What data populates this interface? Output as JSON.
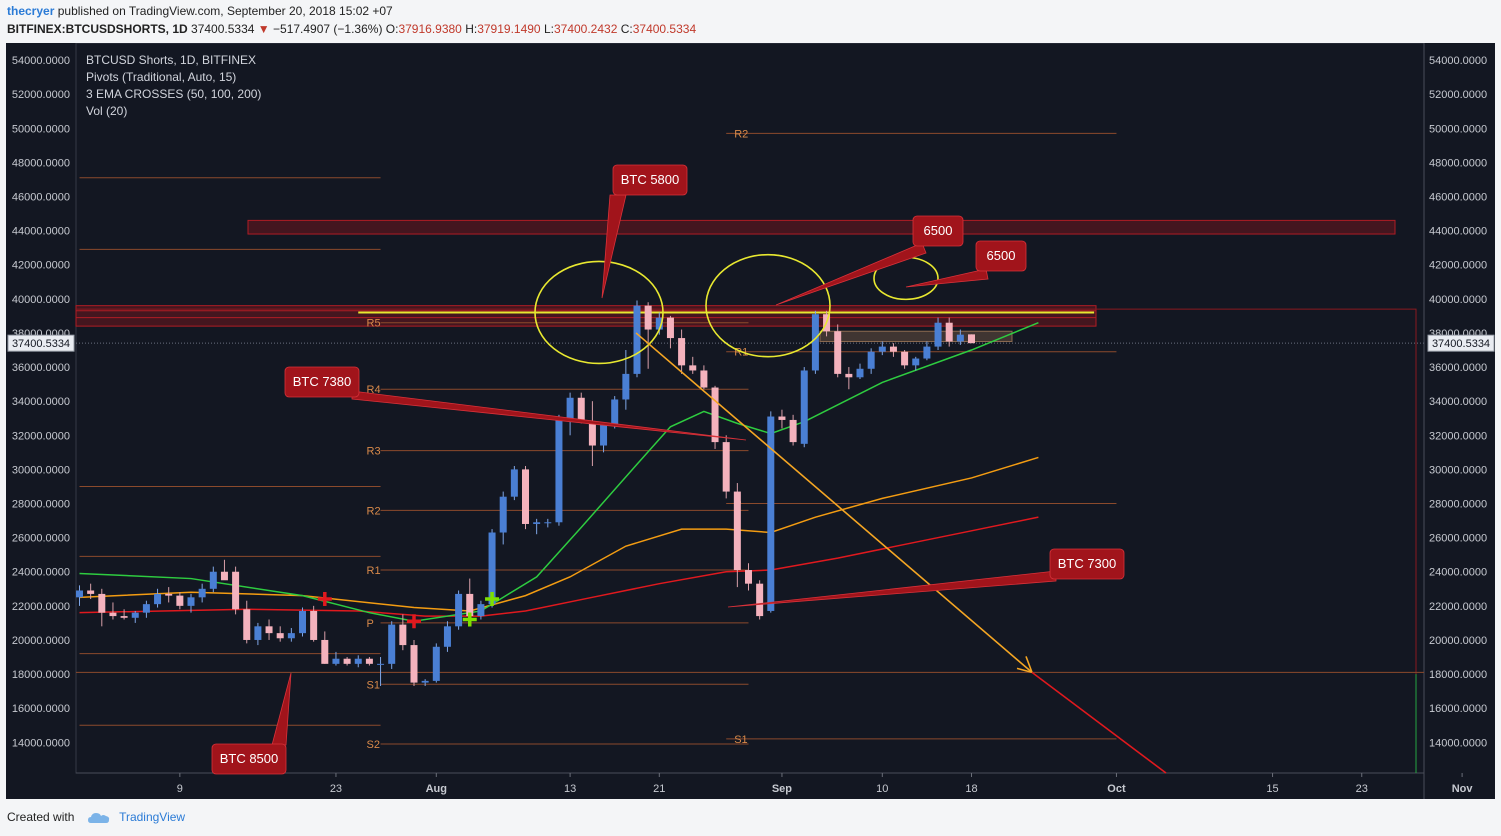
{
  "header": {
    "author": "thecryer",
    "published": "published on TradingView.com, September 20, 2018 15:02 +07"
  },
  "quote": {
    "symbol": "BITFINEX:BTCUSDSHORTS, 1D",
    "last": "37400.5334",
    "change": "−517.4907 (−1.36%)",
    "o_label": "O:",
    "o": "37916.9380",
    "h_label": "H:",
    "h": "37919.1490",
    "l_label": "L:",
    "l": "37400.2432",
    "c_label": "C:",
    "c": "37400.5334"
  },
  "legend": [
    "BTCUSD Shorts, 1D, BITFINEX",
    "Pivots (Traditional, Auto, 15)",
    "3 EMA CROSSES (50, 100, 200)",
    "Vol (20)"
  ],
  "footer": {
    "created": "Created with",
    "brand": "TradingView"
  },
  "colors": {
    "background": "#131722",
    "up": "#4a7fd4",
    "down": "#f4b2bd",
    "ema50": "#2ecc40",
    "ema100": "#f39c12",
    "ema200": "#e0191e",
    "pivot": "#8b4a2c",
    "annotation": "#a1141b",
    "arrow": "#f5a623",
    "yellow": "#e8e830"
  },
  "chart_data": {
    "type": "candlestick",
    "ylim": [
      12200,
      55000
    ],
    "y_ticks": [
      "54000.0000",
      "52000.0000",
      "50000.0000",
      "48000.0000",
      "46000.0000",
      "44000.0000",
      "42000.0000",
      "40000.0000",
      "38000.0000",
      "36000.0000",
      "34000.0000",
      "32000.0000",
      "30000.0000",
      "28000.0000",
      "26000.0000",
      "24000.0000",
      "22000.0000",
      "20000.0000",
      "18000.0000",
      "16000.0000",
      "14000.0000"
    ],
    "x_ticks": [
      {
        "label": "9",
        "day": 9
      },
      {
        "label": "23",
        "day": 23
      },
      {
        "label": "Aug",
        "day": 32
      },
      {
        "label": "13",
        "day": 44
      },
      {
        "label": "21",
        "day": 52
      },
      {
        "label": "Sep",
        "day": 63
      },
      {
        "label": "10",
        "day": 72
      },
      {
        "label": "18",
        "day": 80
      },
      {
        "label": "Oct",
        "day": 93
      },
      {
        "label": "15",
        "day": 107
      },
      {
        "label": "23",
        "day": 115
      },
      {
        "label": "Nov",
        "day": 124
      }
    ],
    "last_price_label": "37400.5334",
    "last_price": 37400.5334,
    "candles": [
      [
        0,
        22500,
        23200,
        22000,
        22900
      ],
      [
        1,
        22900,
        23300,
        22400,
        22700
      ],
      [
        2,
        22700,
        23000,
        20800,
        21600
      ],
      [
        3,
        21600,
        22200,
        21200,
        21400
      ],
      [
        4,
        21400,
        21800,
        21200,
        21300
      ],
      [
        5,
        21300,
        21700,
        21000,
        21600
      ],
      [
        6,
        21600,
        22300,
        21300,
        22100
      ],
      [
        7,
        22100,
        23000,
        21900,
        22700
      ],
      [
        8,
        22700,
        23100,
        22200,
        22600
      ],
      [
        9,
        22600,
        22800,
        21800,
        22000
      ],
      [
        10,
        22000,
        22700,
        21600,
        22500
      ],
      [
        11,
        22500,
        23300,
        22200,
        23000
      ],
      [
        12,
        23000,
        24300,
        22800,
        24000
      ],
      [
        13,
        24000,
        24700,
        23600,
        23500
      ],
      [
        14,
        24000,
        24300,
        21500,
        21800
      ],
      [
        15,
        21800,
        22300,
        19800,
        20000
      ],
      [
        16,
        20000,
        21000,
        19700,
        20800
      ],
      [
        17,
        20800,
        21200,
        20000,
        20400
      ],
      [
        18,
        20400,
        20800,
        19900,
        20100
      ],
      [
        19,
        20100,
        20700,
        19900,
        20400
      ],
      [
        20,
        20400,
        21900,
        20200,
        21700
      ],
      [
        21,
        21700,
        22000,
        19900,
        20000
      ],
      [
        22,
        20000,
        20500,
        18600,
        18600
      ],
      [
        23,
        18600,
        19300,
        18500,
        18900
      ],
      [
        24,
        18900,
        19000,
        18500,
        18600
      ],
      [
        25,
        18600,
        19100,
        18400,
        18900
      ],
      [
        26,
        18900,
        19000,
        18500,
        18600
      ],
      [
        27,
        18600,
        19000,
        17300,
        18600
      ],
      [
        28,
        18600,
        21100,
        18300,
        20900
      ],
      [
        29,
        20900,
        21500,
        19400,
        19700
      ],
      [
        30,
        19700,
        20000,
        17300,
        17500
      ],
      [
        31,
        17500,
        17700,
        17300,
        17600
      ],
      [
        32,
        17600,
        19800,
        17500,
        19600
      ],
      [
        33,
        19600,
        21100,
        19300,
        20800
      ],
      [
        34,
        20800,
        22900,
        20600,
        22700
      ],
      [
        35,
        22700,
        23600,
        21300,
        21400
      ],
      [
        36,
        21400,
        22300,
        21200,
        22100
      ],
      [
        37,
        22100,
        26500,
        21900,
        26300
      ],
      [
        38,
        26300,
        28700,
        25600,
        28400
      ],
      [
        39,
        28400,
        30200,
        28200,
        30000
      ],
      [
        40,
        30000,
        30200,
        26500,
        26800
      ],
      [
        41,
        26800,
        27100,
        26200,
        26900
      ],
      [
        42,
        26900,
        27100,
        26600,
        26900
      ],
      [
        43,
        26900,
        33200,
        26700,
        32900
      ],
      [
        44,
        32900,
        34500,
        32000,
        34200
      ],
      [
        45,
        34200,
        34500,
        32700,
        32800
      ],
      [
        46,
        32800,
        34000,
        30200,
        31400
      ],
      [
        47,
        31400,
        32600,
        31000,
        32600
      ],
      [
        48,
        32600,
        34300,
        32400,
        34100
      ],
      [
        49,
        34100,
        37000,
        33500,
        35600
      ],
      [
        50,
        35600,
        39900,
        35400,
        39600
      ],
      [
        51,
        39600,
        39800,
        35900,
        38200
      ],
      [
        52,
        38200,
        39200,
        37900,
        38900
      ],
      [
        53,
        38900,
        39000,
        37100,
        37700
      ],
      [
        54,
        37700,
        38200,
        35600,
        36100
      ],
      [
        55,
        36100,
        36600,
        35600,
        35800
      ],
      [
        56,
        35800,
        36100,
        34700,
        34800
      ],
      [
        57,
        34800,
        34900,
        31200,
        31600
      ],
      [
        58,
        31600,
        32000,
        28300,
        28700
      ],
      [
        59,
        28700,
        29200,
        23100,
        24100
      ],
      [
        60,
        24100,
        24500,
        22900,
        23300
      ],
      [
        61,
        23300,
        23500,
        21200,
        21400
      ],
      [
        62,
        21700,
        33400,
        21600,
        33100
      ],
      [
        63,
        33100,
        33500,
        32400,
        32900
      ],
      [
        64,
        32900,
        33200,
        31400,
        31600
      ],
      [
        65,
        31500,
        36000,
        31300,
        35800
      ],
      [
        66,
        35800,
        39300,
        35600,
        39100
      ],
      [
        67,
        39100,
        39300,
        37800,
        38100
      ],
      [
        68,
        38100,
        38500,
        35400,
        35600
      ],
      [
        69,
        35600,
        36000,
        34700,
        35400
      ],
      [
        70,
        35400,
        36200,
        35300,
        35900
      ],
      [
        71,
        35900,
        37100,
        35600,
        36900
      ],
      [
        72,
        36900,
        37500,
        36700,
        37200
      ],
      [
        73,
        37200,
        37400,
        36600,
        36900
      ],
      [
        74,
        36900,
        37000,
        35900,
        36100
      ],
      [
        75,
        36100,
        36600,
        35800,
        36500
      ],
      [
        76,
        36500,
        37500,
        36400,
        37200
      ],
      [
        77,
        37200,
        38900,
        37000,
        38600
      ],
      [
        78,
        38600,
        38900,
        37200,
        37500
      ],
      [
        79,
        37500,
        38200,
        37300,
        37900
      ],
      [
        80,
        37917,
        37919,
        37400,
        37400
      ]
    ],
    "ema50": [
      [
        0,
        23900
      ],
      [
        10,
        23600
      ],
      [
        20,
        22600
      ],
      [
        26,
        21600
      ],
      [
        30,
        21100
      ],
      [
        36,
        21700
      ],
      [
        41,
        23700
      ],
      [
        45,
        26600
      ],
      [
        50,
        30300
      ],
      [
        53,
        32500
      ],
      [
        56,
        33400
      ],
      [
        59,
        32700
      ],
      [
        62,
        32100
      ],
      [
        65,
        32800
      ],
      [
        72,
        35100
      ],
      [
        80,
        37000
      ],
      [
        86,
        38600
      ]
    ],
    "ema100": [
      [
        0,
        22500
      ],
      [
        10,
        22800
      ],
      [
        20,
        22600
      ],
      [
        30,
        21900
      ],
      [
        35,
        21700
      ],
      [
        40,
        22600
      ],
      [
        44,
        23700
      ],
      [
        49,
        25500
      ],
      [
        54,
        26500
      ],
      [
        58,
        26500
      ],
      [
        62,
        26300
      ],
      [
        66,
        27200
      ],
      [
        72,
        28300
      ],
      [
        80,
        29500
      ],
      [
        86,
        30700
      ]
    ],
    "ema200": [
      [
        0,
        21600
      ],
      [
        15,
        21800
      ],
      [
        25,
        21700
      ],
      [
        31,
        21400
      ],
      [
        36,
        21400
      ],
      [
        40,
        21700
      ],
      [
        46,
        22500
      ],
      [
        52,
        23300
      ],
      [
        58,
        24000
      ],
      [
        62,
        24100
      ],
      [
        68,
        24800
      ],
      [
        74,
        25600
      ],
      [
        80,
        26400
      ],
      [
        86,
        27200
      ]
    ],
    "pivots": [
      {
        "label": "R5",
        "value": 38600,
        "x0": 27,
        "x1": 60
      },
      {
        "label": "R4",
        "value": 34700,
        "x0": 27,
        "x1": 60
      },
      {
        "label": "R3",
        "value": 31100,
        "x0": 27,
        "x1": 60
      },
      {
        "label": "R2",
        "value": 27600,
        "x0": 27,
        "x1": 60
      },
      {
        "label": "R1",
        "value": 24100,
        "x0": 27,
        "x1": 60
      },
      {
        "label": "P",
        "value": 21000,
        "x0": 27,
        "x1": 60
      },
      {
        "label": "S1",
        "value": 17400,
        "x0": 27,
        "x1": 60
      },
      {
        "label": "S2",
        "value": 13900,
        "x0": 27,
        "x1": 60
      },
      {
        "label": "R2",
        "value": 49700,
        "x0": 58,
        "x1": 93
      },
      {
        "label": "R1",
        "value": 36900,
        "x0": 58,
        "x1": 93
      },
      {
        "label": "P",
        "value": 28000,
        "x0": 58,
        "x1": 93
      },
      {
        "label": "S1",
        "value": 14200,
        "x0": 58,
        "x1": 93
      },
      {
        "label": "",
        "value": 47100,
        "x0": 0,
        "x1": 27
      },
      {
        "label": "",
        "value": 42900,
        "x0": 0,
        "x1": 27
      },
      {
        "label": "",
        "value": 29000,
        "x0": 0,
        "x1": 27
      },
      {
        "label": "",
        "value": 24900,
        "x0": 0,
        "x1": 27
      },
      {
        "label": "",
        "value": 19200,
        "x0": 0,
        "x1": 27
      },
      {
        "label": "",
        "value": 15000,
        "x0": 0,
        "x1": 27
      }
    ],
    "annotations": [
      "BTC 5800",
      "6500",
      "6500",
      "BTC 7380",
      "BTC 7300",
      "BTC 8500"
    ]
  }
}
